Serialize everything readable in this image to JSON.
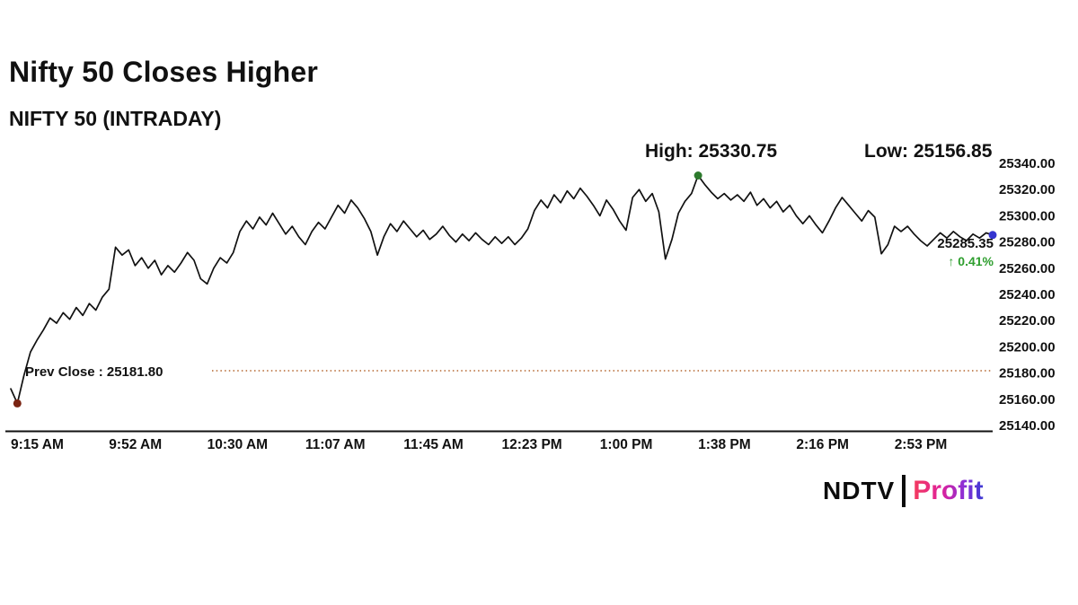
{
  "page": {
    "title": "Nifty 50 Closes Higher",
    "subtitle": "NIFTY 50 (INTRADAY)"
  },
  "chart_data": {
    "type": "line",
    "title": "NIFTY 50 (INTRADAY)",
    "ylim": [
      25140,
      25340
    ],
    "grid": false,
    "legend": "none",
    "x_tick_labels": [
      "9:15 AM",
      "9:52 AM",
      "10:30 AM",
      "11:07 AM",
      "11:45 AM",
      "12:23 PM",
      "1:00 PM",
      "1:38 PM",
      "2:16 PM",
      "2:53 PM"
    ],
    "y_ticks": [
      25340,
      25320,
      25300,
      25280,
      25260,
      25240,
      25220,
      25200,
      25180,
      25160,
      25140
    ],
    "y_tick_labels": [
      "25340.00",
      "25320.00",
      "25300.00",
      "25280.00",
      "25260.00",
      "25240.00",
      "25220.00",
      "25200.00",
      "25180.00",
      "25160.00",
      "25140.00"
    ],
    "series": [
      {
        "name": "NIFTY 50",
        "values": [
          25168,
          25156.85,
          25178,
          25196,
          25205,
          25213,
          25222,
          25218,
          25226,
          25221,
          25230,
          25224,
          25233,
          25228,
          25238,
          25244,
          25276,
          25270,
          25274,
          25262,
          25268,
          25260,
          25266,
          25255,
          25262,
          25257,
          25264,
          25272,
          25266,
          25252,
          25248,
          25260,
          25268,
          25264,
          25272,
          25288,
          25296,
          25290,
          25299,
          25293,
          25302,
          25294,
          25286,
          25292,
          25284,
          25278,
          25288,
          25295,
          25290,
          25299,
          25308,
          25302,
          25312,
          25306,
          25298,
          25288,
          25270,
          25284,
          25294,
          25288,
          25296,
          25290,
          25284,
          25289,
          25282,
          25286,
          25292,
          25285,
          25280,
          25286,
          25281,
          25287,
          25282,
          25278,
          25284,
          25279,
          25284,
          25278,
          25283,
          25290,
          25304,
          25312,
          25306,
          25316,
          25310,
          25319,
          25313,
          25321,
          25315,
          25308,
          25300,
          25312,
          25305,
          25296,
          25289,
          25314,
          25320,
          25311,
          25317,
          25303,
          25267,
          25282,
          25302,
          25311,
          25317,
          25330.75,
          25324,
          25318,
          25313,
          25317,
          25312,
          25316,
          25311,
          25318,
          25308,
          25313,
          25306,
          25311,
          25303,
          25308,
          25300,
          25294,
          25300,
          25293,
          25287,
          25296,
          25306,
          25314,
          25308,
          25302,
          25296,
          25304,
          25299,
          25271,
          25278,
          25292,
          25288,
          25292,
          25286,
          25281,
          25277,
          25282,
          25287,
          25283,
          25288,
          25284,
          25281,
          25286,
          25283,
          25287,
          25285.35
        ]
      }
    ],
    "annotations": {
      "high": {
        "label": "High: 25330.75",
        "value": 25330.75
      },
      "low": {
        "label": "Low: 25156.85",
        "value": 25156.85
      },
      "prev_close": {
        "label": "Prev Close : 25181.80",
        "value": 25181.8
      },
      "last": {
        "price": "25285.35",
        "change": "↑ 0.41%",
        "value": 25285.35
      }
    },
    "colors": {
      "line": "#111111",
      "high_dot": "#2d7a2d",
      "start_dot": "#7a2412",
      "end_dot": "#3434cf",
      "prev_close_line": "#b4652d",
      "change_green": "#2e9e2e",
      "axis_text": "#111111"
    }
  },
  "branding": {
    "ndtv": "NDTV",
    "separator": "|",
    "profit": "Profit"
  }
}
